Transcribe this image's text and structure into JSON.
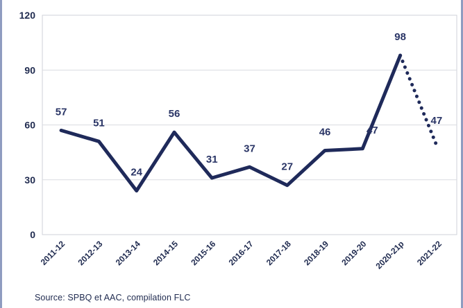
{
  "chart_data": {
    "type": "line",
    "categories": [
      "2011-12",
      "2012-13",
      "2013-14",
      "2014-15",
      "2015-16",
      "2016-17",
      "2017-18",
      "2018-19",
      "2019-20",
      "2020-21p",
      "2021-22"
    ],
    "series": [
      {
        "values": [
          57,
          51,
          24,
          56,
          31,
          37,
          27,
          46,
          47,
          98,
          47
        ],
        "data_labels": [
          "57",
          "51",
          "24",
          "56",
          "31",
          "37",
          "27",
          "46",
          "47",
          "98",
          "47"
        ],
        "projected_from_index": 9
      }
    ],
    "ylim": [
      0,
      120
    ],
    "yticks": [
      "0",
      "30",
      "60",
      "90",
      "120"
    ],
    "grid": "horizontal",
    "line_color": "#1f2a5a",
    "label_color": "#2a3566"
  },
  "source": "Source: SPBQ et AAC, compilation FLC"
}
